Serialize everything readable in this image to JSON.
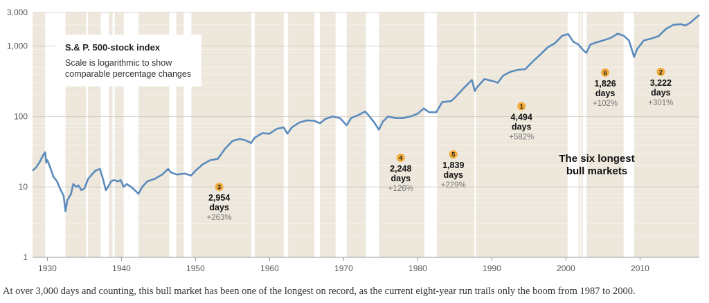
{
  "chart_data": {
    "type": "line",
    "title": "S.& P. 500-stock index",
    "subtitle": "Scale is logarithmic to show comparable percentage changes",
    "xlim": [
      1928,
      2018
    ],
    "ylim": [
      1,
      3000
    ],
    "y_scale": "log",
    "x_ticks": [
      1930,
      1940,
      1950,
      1960,
      1970,
      1980,
      1990,
      2000,
      2010
    ],
    "x_tick_labels": [
      "1930",
      "1940",
      "1950",
      "1960",
      "1970",
      "1980",
      "1990",
      "2000",
      "2010"
    ],
    "y_ticks": [
      1,
      10,
      100,
      1000,
      3000
    ],
    "y_tick_labels": [
      "1",
      "10",
      "100",
      "1,000",
      "3,000"
    ],
    "grid": true,
    "colors": {
      "line": "#5b8bbd",
      "bull_band": "#ede7dc",
      "bear_band": "#ffffff",
      "badge": "#f2ab3b"
    },
    "series": [
      {
        "x": [
          1928.0,
          1928.5,
          1929.0,
          1929.5,
          1929.7,
          1929.85,
          1930.0,
          1930.3,
          1930.8,
          1931.3,
          1931.8,
          1932.2,
          1932.45,
          1932.7,
          1932.9,
          1933.2,
          1933.5,
          1933.9,
          1934.2,
          1934.6,
          1935.0,
          1935.5,
          1936.0,
          1936.5,
          1937.1,
          1937.5,
          1937.9,
          1938.2,
          1938.6,
          1939.0,
          1939.5,
          1939.9,
          1940.3,
          1940.7,
          1941.3,
          1941.8,
          1942.3,
          1942.8,
          1943.5,
          1944.5,
          1945.5,
          1946.3,
          1946.7,
          1947.5,
          1948.5,
          1949.4,
          1950.0,
          1951.0,
          1952.0,
          1953.0,
          1954.0,
          1955.0,
          1956.0,
          1956.7,
          1957.5,
          1958.0,
          1959.0,
          1960.0,
          1961.0,
          1961.9,
          1962.4,
          1963.0,
          1964.0,
          1965.0,
          1966.0,
          1966.8,
          1967.5,
          1968.5,
          1969.5,
          1970.4,
          1971.0,
          1972.0,
          1972.9,
          1973.5,
          1974.2,
          1974.75,
          1975.3,
          1976.0,
          1977.0,
          1978.0,
          1979.0,
          1980.0,
          1980.8,
          1981.5,
          1982.5,
          1983.3,
          1984.5,
          1985.0,
          1986.0,
          1987.3,
          1987.7,
          1988.0,
          1989.0,
          1990.5,
          1990.8,
          1991.5,
          1992.5,
          1993.5,
          1994.5,
          1995.5,
          1996.5,
          1997.5,
          1998.5,
          1999.5,
          2000.3,
          2001.0,
          2001.7,
          2002.3,
          2002.75,
          2003.3,
          2004.0,
          2005.0,
          2006.0,
          2007.0,
          2007.8,
          2008.5,
          2009.2,
          2009.6,
          2010.5,
          2011.5,
          2012.5,
          2013.5,
          2014.5,
          2015.5,
          2016.1,
          2016.8,
          2017.5,
          2018.0
        ],
        "values": [
          17,
          19,
          23,
          29,
          31,
          22,
          24,
          20,
          14,
          12,
          9,
          7.5,
          4.5,
          6.5,
          7,
          8,
          11,
          10,
          10.5,
          9,
          9.5,
          13,
          15,
          17,
          18,
          13,
          9,
          10,
          12,
          12.5,
          12,
          12.5,
          10,
          11,
          10,
          9,
          8,
          10,
          12,
          13,
          15,
          18,
          16,
          15,
          15.5,
          14.5,
          17,
          21,
          24,
          25,
          35,
          45,
          48,
          46,
          42,
          50,
          58,
          57,
          67,
          70,
          57,
          70,
          82,
          88,
          87,
          80,
          92,
          100,
          95,
          75,
          95,
          105,
          118,
          100,
          80,
          65,
          85,
          100,
          95,
          95,
          100,
          110,
          130,
          115,
          115,
          160,
          165,
          185,
          240,
          330,
          230,
          260,
          340,
          310,
          300,
          380,
          430,
          460,
          470,
          600,
          750,
          950,
          1100,
          1400,
          1480,
          1150,
          1050,
          880,
          800,
          1050,
          1120,
          1200,
          1300,
          1500,
          1400,
          1200,
          700,
          900,
          1200,
          1280,
          1380,
          1750,
          2000,
          2050,
          1950,
          2150,
          2500,
          2750
        ]
      }
    ],
    "bull_markets": [
      {
        "rank": "3",
        "start": 1949.45,
        "end": 1957.53,
        "days": "2,954",
        "days_label": "days",
        "gain": "+263%",
        "label_x": 1953.2,
        "label_y": 10
      },
      {
        "rank": "4",
        "start": 1974.75,
        "end": 1980.9,
        "days": "2,248",
        "days_label": "days",
        "gain": "+126%",
        "label_x": 1977.7,
        "label_y": 26
      },
      {
        "rank": "5",
        "start": 1982.6,
        "end": 1987.65,
        "days": "1,839",
        "days_label": "days",
        "gain": "+229%",
        "label_x": 1984.8,
        "label_y": 29
      },
      {
        "rank": "1",
        "start": 1987.85,
        "end": 2000.22,
        "days": "4,494",
        "days_label": "days",
        "gain": "+582%",
        "label_x": 1994.0,
        "label_y": 140
      },
      {
        "rank": "6",
        "start": 2002.78,
        "end": 2007.78,
        "days": "1,826",
        "days_label": "days",
        "gain": "+102%",
        "label_x": 2005.3,
        "label_y": 420
      },
      {
        "rank": "2",
        "start": 2009.2,
        "end": 2018.0,
        "days": "3,222",
        "days_label": "days",
        "gain": "+301%",
        "label_x": 2012.8,
        "label_y": 430
      }
    ],
    "other_bull_markets": [
      [
        1928.0,
        1929.7
      ],
      [
        1932.45,
        1935.25
      ],
      [
        1935.5,
        1937.2
      ],
      [
        1938.3,
        1938.8
      ],
      [
        1939.1,
        1940.3
      ],
      [
        1942.3,
        1946.45
      ],
      [
        1947.4,
        1948.4
      ],
      [
        1958.0,
        1961.9
      ],
      [
        1962.5,
        1966.05
      ],
      [
        1966.8,
        1968.9
      ],
      [
        1970.4,
        1973.0
      ],
      [
        2001.7,
        2001.95
      ],
      [
        2002.1,
        2002.3
      ]
    ],
    "annotation": "The six longest bull markets"
  },
  "caption": "At over 3,000 days and counting, this bull market has been one of the longest on record, as the current eight-year run trails only the boom from 1987 to 2000."
}
